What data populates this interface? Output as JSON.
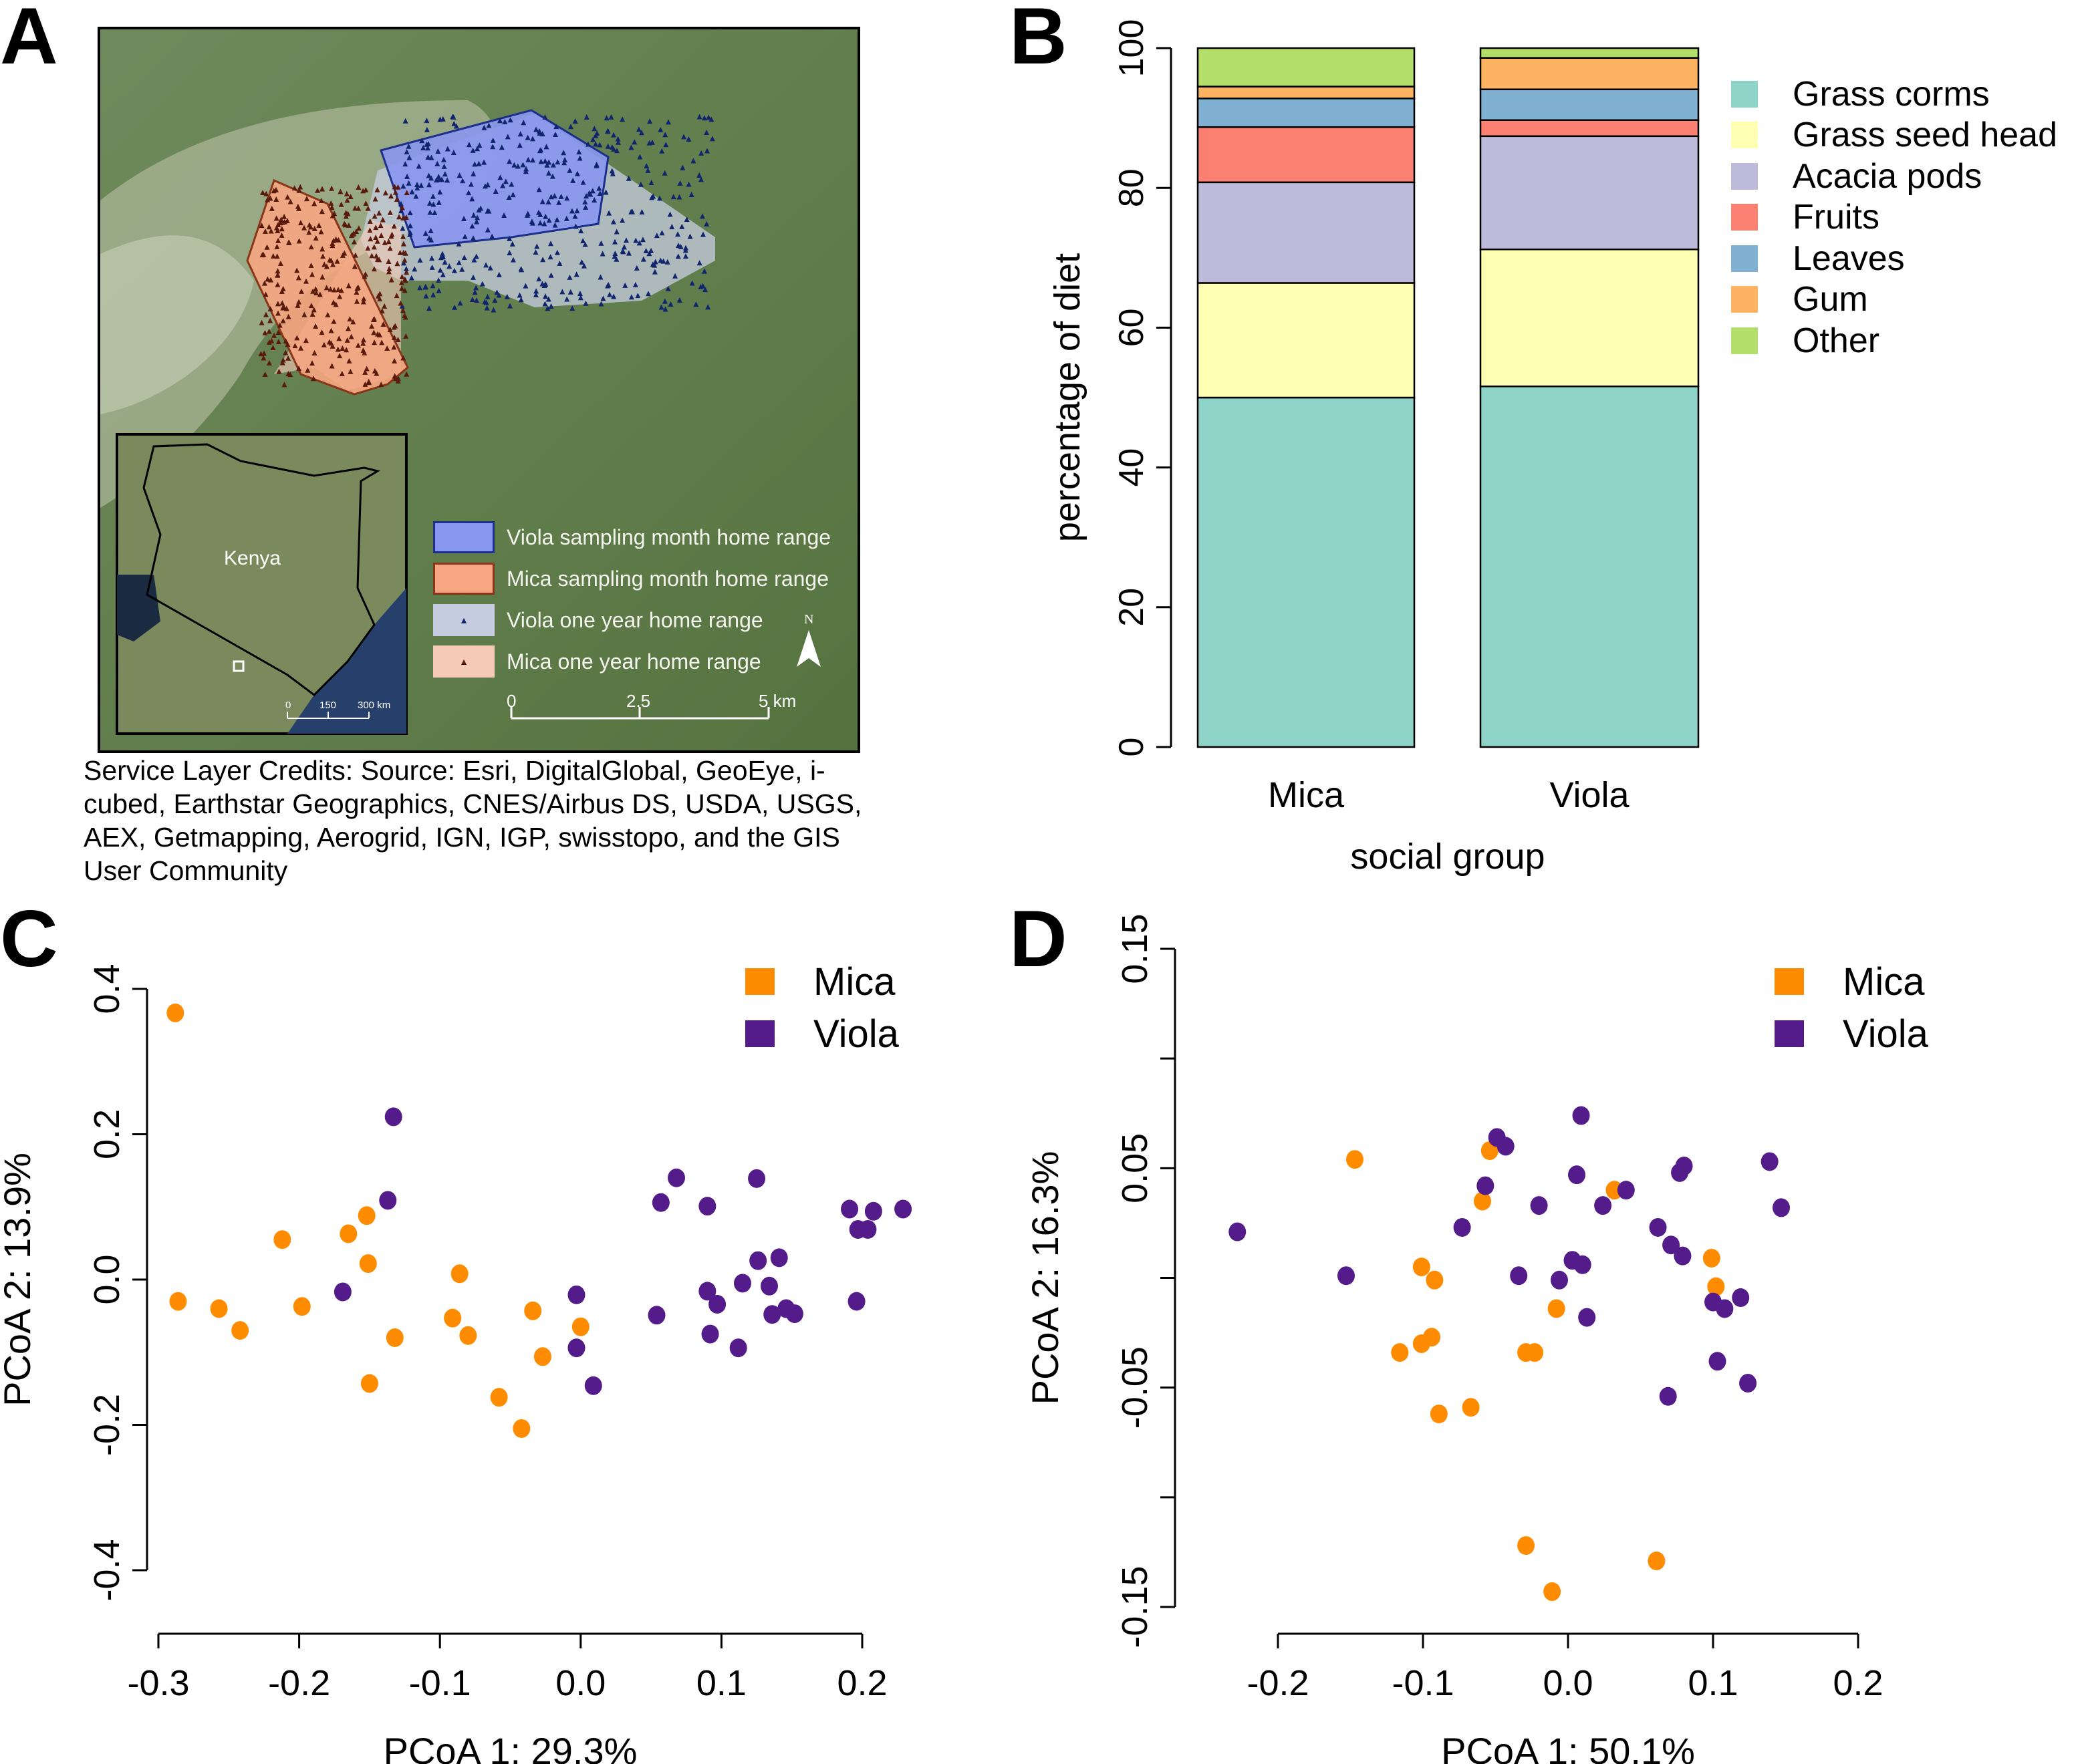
{
  "panels": {
    "A": {
      "letter": "A",
      "inset_label": "Kenya",
      "inset_scale": {
        "labels": [
          "0",
          "150",
          "300 km"
        ]
      },
      "legend": [
        {
          "label": "Viola sampling month home range",
          "fill": "#8a97f0",
          "stroke": "#1c2f8c",
          "marker": ""
        },
        {
          "label": "Mica sampling month home range",
          "fill": "#f6a682",
          "stroke": "#8a3418",
          "marker": ""
        },
        {
          "label": "Viola one year home range",
          "fill": "#c7cde0",
          "stroke": "none",
          "marker": "▲"
        },
        {
          "label": "Mica one year home range",
          "fill": "#f5cbb8",
          "stroke": "none",
          "marker": "▲"
        }
      ],
      "north_label": "N",
      "scale_bar": {
        "labels": [
          "0",
          "2.5",
          "5 km"
        ]
      },
      "credits": "Service Layer Credits: Source: Esri, DigitalGlobal, GeoEye, i-cubed, Earthstar Geographics, CNES/Airbus DS, USDA, USGS, AEX, Getmapping, Aerogrid, IGN, IGP, swisstopo, and the GIS User Community",
      "colors": {
        "viola_points": "#10256e",
        "mica_points": "#5a1a0c"
      }
    },
    "B": {
      "letter": "B"
    },
    "C": {
      "letter": "C"
    },
    "D": {
      "letter": "D"
    }
  },
  "chart_data": [
    {
      "panel": "B",
      "type": "bar",
      "stacked": true,
      "title": "",
      "xlabel": "social group",
      "ylabel": "percentage of diet",
      "ylim": [
        0,
        100
      ],
      "yticks": [
        0,
        20,
        40,
        60,
        80,
        100
      ],
      "categories": [
        "Mica",
        "Viola"
      ],
      "legend_position": "top-right",
      "series": [
        {
          "name": "Grass corms",
          "color": "#8dd3c7",
          "values": [
            50.0,
            51.6
          ]
        },
        {
          "name": "Grass seed head",
          "color": "#ffffb3",
          "values": [
            16.4,
            19.6
          ]
        },
        {
          "name": "Acacia pods",
          "color": "#bebada",
          "values": [
            14.4,
            16.2
          ]
        },
        {
          "name": "Fruits",
          "color": "#fb8072",
          "values": [
            7.9,
            2.3
          ]
        },
        {
          "name": "Leaves",
          "color": "#80b1d3",
          "values": [
            4.1,
            4.4
          ]
        },
        {
          "name": "Gum",
          "color": "#fdb462",
          "values": [
            1.7,
            4.5
          ]
        },
        {
          "name": "Other",
          "color": "#b3de69",
          "values": [
            5.5,
            1.4
          ]
        }
      ]
    },
    {
      "panel": "C",
      "type": "scatter",
      "xlabel": "PCoA 1: 29.3%",
      "ylabel": "PCoA 2: 13.9%",
      "xlim": [
        -0.3,
        0.2
      ],
      "ylim": [
        -0.4,
        0.4
      ],
      "xticks": [
        "-0.3",
        "-0.2",
        "-0.1",
        "0.0",
        "0.1",
        "0.2"
      ],
      "yticks": [
        "-0.4",
        "-0.2",
        "0.0",
        "0.2",
        "0.4"
      ],
      "legend_position": "top-right",
      "series": [
        {
          "name": "Mica",
          "color": "#ff8c00",
          "points": [
            [
              -0.288,
              0.367
            ],
            [
              -0.286,
              -0.03
            ],
            [
              -0.257,
              -0.04
            ],
            [
              -0.242,
              -0.07
            ],
            [
              -0.212,
              0.055
            ],
            [
              -0.198,
              -0.037
            ],
            [
              -0.165,
              0.063
            ],
            [
              -0.152,
              0.088
            ],
            [
              -0.151,
              0.022
            ],
            [
              -0.15,
              -0.143
            ],
            [
              -0.132,
              -0.08
            ],
            [
              -0.091,
              -0.053
            ],
            [
              -0.086,
              0.008
            ],
            [
              -0.08,
              -0.077
            ],
            [
              -0.058,
              -0.162
            ],
            [
              -0.042,
              -0.205
            ],
            [
              -0.034,
              -0.043
            ],
            [
              -0.027,
              -0.106
            ],
            [
              0.0,
              -0.065
            ]
          ]
        },
        {
          "name": "Viola",
          "color": "#541b8b",
          "points": [
            [
              -0.133,
              0.224
            ],
            [
              -0.137,
              0.109
            ],
            [
              -0.169,
              -0.017
            ],
            [
              -0.003,
              -0.021
            ],
            [
              -0.003,
              -0.094
            ],
            [
              0.009,
              -0.146
            ],
            [
              0.054,
              -0.049
            ],
            [
              0.057,
              0.106
            ],
            [
              0.068,
              0.14
            ],
            [
              0.09,
              0.101
            ],
            [
              0.09,
              -0.016
            ],
            [
              0.092,
              -0.075
            ],
            [
              0.097,
              -0.034
            ],
            [
              0.112,
              -0.094
            ],
            [
              0.115,
              -0.005
            ],
            [
              0.125,
              0.139
            ],
            [
              0.126,
              0.026
            ],
            [
              0.134,
              -0.009
            ],
            [
              0.136,
              -0.048
            ],
            [
              0.141,
              0.03
            ],
            [
              0.146,
              -0.04
            ],
            [
              0.152,
              -0.047
            ],
            [
              0.191,
              0.097
            ],
            [
              0.197,
              0.069
            ],
            [
              0.204,
              0.069
            ],
            [
              0.208,
              0.094
            ],
            [
              0.196,
              -0.03
            ],
            [
              0.229,
              0.097
            ]
          ]
        }
      ]
    },
    {
      "panel": "D",
      "type": "scatter",
      "xlabel": "PCoA 1: 50.1%",
      "ylabel": "PCoA 2: 16.3%",
      "xlim": [
        -0.2,
        0.2
      ],
      "ylim": [
        -0.15,
        0.15
      ],
      "xticks": [
        "-0.2",
        "-0.1",
        "0.0",
        "0.1",
        "0.2"
      ],
      "yticks": [
        "-0.15",
        "",
        "-0.05",
        "",
        "0.05",
        "",
        "0.15"
      ],
      "legend_position": "top-right",
      "series": [
        {
          "name": "Mica",
          "color": "#ff8c00",
          "points": [
            [
              -0.147,
              0.054
            ],
            [
              -0.054,
              0.058
            ],
            [
              -0.059,
              0.035
            ],
            [
              0.032,
              0.04
            ],
            [
              -0.101,
              0.005
            ],
            [
              -0.092,
              -0.001
            ],
            [
              -0.008,
              -0.014
            ],
            [
              -0.094,
              -0.027
            ],
            [
              -0.101,
              -0.03
            ],
            [
              -0.116,
              -0.034
            ],
            [
              -0.029,
              -0.034
            ],
            [
              -0.023,
              -0.034
            ],
            [
              -0.067,
              -0.059
            ],
            [
              -0.089,
              -0.062
            ],
            [
              0.099,
              0.009
            ],
            [
              0.102,
              -0.004
            ],
            [
              -0.029,
              -0.122
            ],
            [
              0.061,
              -0.129
            ],
            [
              -0.011,
              -0.143
            ]
          ]
        },
        {
          "name": "Viola",
          "color": "#541b8b",
          "points": [
            [
              -0.228,
              0.021
            ],
            [
              -0.153,
              0.001
            ],
            [
              -0.073,
              0.023
            ],
            [
              -0.057,
              0.042
            ],
            [
              -0.049,
              0.064
            ],
            [
              -0.043,
              0.06
            ],
            [
              -0.034,
              0.001
            ],
            [
              -0.02,
              0.033
            ],
            [
              -0.006,
              -0.001
            ],
            [
              0.003,
              0.008
            ],
            [
              0.01,
              0.006
            ],
            [
              0.009,
              0.074
            ],
            [
              0.006,
              0.047
            ],
            [
              0.013,
              -0.018
            ],
            [
              0.024,
              0.033
            ],
            [
              0.04,
              0.04
            ],
            [
              0.062,
              0.023
            ],
            [
              0.071,
              0.015
            ],
            [
              0.079,
              0.01
            ],
            [
              0.077,
              0.048
            ],
            [
              0.08,
              0.051
            ],
            [
              0.1,
              -0.011
            ],
            [
              0.108,
              -0.014
            ],
            [
              0.119,
              -0.009
            ],
            [
              0.103,
              -0.038
            ],
            [
              0.124,
              -0.048
            ],
            [
              0.069,
              -0.054
            ],
            [
              0.139,
              0.053
            ],
            [
              0.147,
              0.032
            ]
          ]
        }
      ]
    }
  ]
}
